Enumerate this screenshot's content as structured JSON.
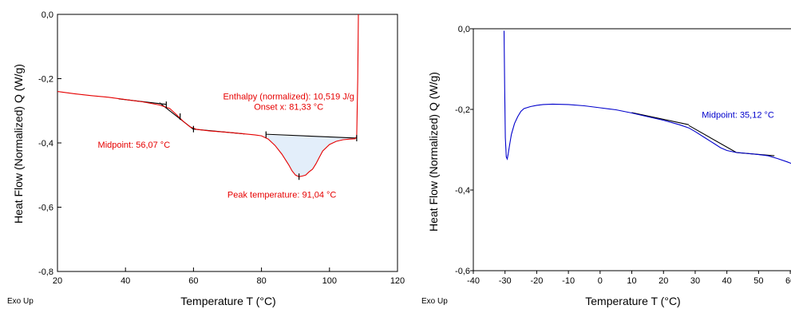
{
  "chart_data": [
    {
      "type": "line",
      "xlabel": "Temperature T (°C)",
      "ylabel": "Heat Flow (Normalized) Q (W/g)",
      "xlim": [
        20,
        120
      ],
      "ylim": [
        -0.8,
        0.0
      ],
      "xticks": [
        "20",
        "40",
        "60",
        "80",
        "100",
        "120"
      ],
      "yticks": [
        "0,0",
        "-0,2",
        "-0,4",
        "-0,6",
        "-0,8"
      ],
      "xtick_values": [
        20,
        40,
        60,
        80,
        100,
        120
      ],
      "ytick_values": [
        0.0,
        -0.2,
        -0.4,
        -0.6,
        -0.8
      ],
      "corner_label": "Exo Up",
      "curve_color": "#e60000",
      "fit_color": "#000000",
      "fill_color": "#e3eefa",
      "curve": [
        [
          20,
          -0.24
        ],
        [
          25,
          -0.247
        ],
        [
          30,
          -0.253
        ],
        [
          35,
          -0.258
        ],
        [
          40,
          -0.265
        ],
        [
          45,
          -0.272
        ],
        [
          50,
          -0.282
        ],
        [
          53,
          -0.293
        ],
        [
          55,
          -0.312
        ],
        [
          57,
          -0.333
        ],
        [
          59,
          -0.35
        ],
        [
          61,
          -0.358
        ],
        [
          65,
          -0.363
        ],
        [
          70,
          -0.367
        ],
        [
          75,
          -0.372
        ],
        [
          78,
          -0.375
        ],
        [
          80,
          -0.378
        ],
        [
          82,
          -0.388
        ],
        [
          84,
          -0.408
        ],
        [
          86,
          -0.435
        ],
        [
          88,
          -0.468
        ],
        [
          89,
          -0.487
        ],
        [
          90,
          -0.5
        ],
        [
          91,
          -0.505
        ],
        [
          92,
          -0.503
        ],
        [
          93,
          -0.5
        ],
        [
          94,
          -0.49
        ],
        [
          95,
          -0.482
        ],
        [
          96,
          -0.465
        ],
        [
          97,
          -0.445
        ],
        [
          98,
          -0.425
        ],
        [
          100,
          -0.405
        ],
        [
          102,
          -0.395
        ],
        [
          104,
          -0.39
        ],
        [
          106,
          -0.388
        ],
        [
          107.5,
          -0.387
        ],
        [
          108,
          -0.38
        ],
        [
          108.3,
          -0.2
        ],
        [
          108.5,
          0.0
        ]
      ],
      "fit_lines": [
        [
          [
            38,
            -0.263
          ],
          [
            52,
            -0.28
          ]
        ],
        [
          [
            50,
            -0.275
          ],
          [
            60,
            -0.358
          ]
        ],
        [
          [
            60,
            -0.357
          ],
          [
            75,
            -0.372
          ]
        ],
        [
          [
            81.33,
            -0.373
          ],
          [
            108,
            -0.385
          ]
        ]
      ],
      "peak_fill": [
        [
          81.33,
          -0.376
        ],
        [
          82,
          -0.388
        ],
        [
          84,
          -0.408
        ],
        [
          86,
          -0.435
        ],
        [
          88,
          -0.468
        ],
        [
          89,
          -0.487
        ],
        [
          90,
          -0.5
        ],
        [
          91,
          -0.505
        ],
        [
          92,
          -0.503
        ],
        [
          93,
          -0.5
        ],
        [
          94,
          -0.49
        ],
        [
          95,
          -0.482
        ],
        [
          96,
          -0.465
        ],
        [
          97,
          -0.445
        ],
        [
          98,
          -0.425
        ],
        [
          100,
          -0.405
        ],
        [
          102,
          -0.395
        ],
        [
          104,
          -0.39
        ],
        [
          106,
          -0.388
        ],
        [
          108,
          -0.385
        ]
      ],
      "markers": [
        {
          "x": 52,
          "y": -0.281
        },
        {
          "x": 56.07,
          "y": -0.318
        },
        {
          "x": 60,
          "y": -0.357
        },
        {
          "x": 81.33,
          "y": -0.374
        },
        {
          "x": 91.04,
          "y": -0.505
        },
        {
          "x": 108,
          "y": -0.385
        }
      ],
      "annotations": [
        {
          "text": "Enthalpy (normalized): 10,519 J/g",
          "x": 88,
          "y": -0.255
        },
        {
          "text": "Onset x: 81,33 °C",
          "x": 88,
          "y": -0.287
        },
        {
          "text": "Midpoint: 56,07 °C",
          "x": 42.5,
          "y": -0.405
        },
        {
          "text": "Peak temperature: 91,04 °C",
          "x": 86,
          "y": -0.56
        }
      ]
    },
    {
      "type": "line",
      "xlabel": "Temperature T (°C)",
      "ylabel": "Heat Flow (Normalized) Q (W/g)",
      "xlim": [
        -40,
        63
      ],
      "ylim": [
        -0.6,
        0.0
      ],
      "xticks": [
        "-40",
        "-30",
        "-20",
        "-10",
        "0",
        "10",
        "20",
        "30",
        "40",
        "50",
        "60"
      ],
      "yticks": [
        "0,0",
        "-0,2",
        "-0,4",
        "-0,6"
      ],
      "xtick_values": [
        -40,
        -30,
        -20,
        -10,
        0,
        10,
        20,
        30,
        40,
        50,
        60
      ],
      "ytick_values": [
        0.0,
        -0.2,
        -0.4,
        -0.6
      ],
      "corner_label": "Exo Up",
      "curve_color": "#0000cc",
      "fit_color": "#000000",
      "curve": [
        [
          -30.3,
          -0.005
        ],
        [
          -30.1,
          -0.15
        ],
        [
          -29.9,
          -0.27
        ],
        [
          -29.6,
          -0.318
        ],
        [
          -29.3,
          -0.323
        ],
        [
          -29.0,
          -0.31
        ],
        [
          -28.5,
          -0.285
        ],
        [
          -28,
          -0.262
        ],
        [
          -27,
          -0.235
        ],
        [
          -26,
          -0.218
        ],
        [
          -25,
          -0.205
        ],
        [
          -24,
          -0.198
        ],
        [
          -22,
          -0.193
        ],
        [
          -20,
          -0.19
        ],
        [
          -18,
          -0.188
        ],
        [
          -15,
          -0.187
        ],
        [
          -10,
          -0.188
        ],
        [
          -5,
          -0.191
        ],
        [
          0,
          -0.196
        ],
        [
          5,
          -0.201
        ],
        [
          10,
          -0.209
        ],
        [
          15,
          -0.218
        ],
        [
          20,
          -0.227
        ],
        [
          25,
          -0.238
        ],
        [
          28,
          -0.246
        ],
        [
          30,
          -0.255
        ],
        [
          33,
          -0.27
        ],
        [
          36,
          -0.285
        ],
        [
          38,
          -0.295
        ],
        [
          40,
          -0.302
        ],
        [
          43,
          -0.307
        ],
        [
          46,
          -0.309
        ],
        [
          50,
          -0.312
        ],
        [
          53,
          -0.315
        ],
        [
          56,
          -0.322
        ],
        [
          59,
          -0.33
        ],
        [
          63,
          -0.342
        ]
      ],
      "fit_lines": [
        [
          [
            10,
            -0.208
          ],
          [
            28,
            -0.238
          ]
        ],
        [
          [
            28,
            -0.24
          ],
          [
            43,
            -0.307
          ]
        ],
        [
          [
            43,
            -0.307
          ],
          [
            55,
            -0.315
          ]
        ]
      ],
      "markers": [],
      "annotations": [
        {
          "text": "Midpoint: 35,12 °C",
          "x": 43.5,
          "y": -0.213
        }
      ]
    }
  ]
}
